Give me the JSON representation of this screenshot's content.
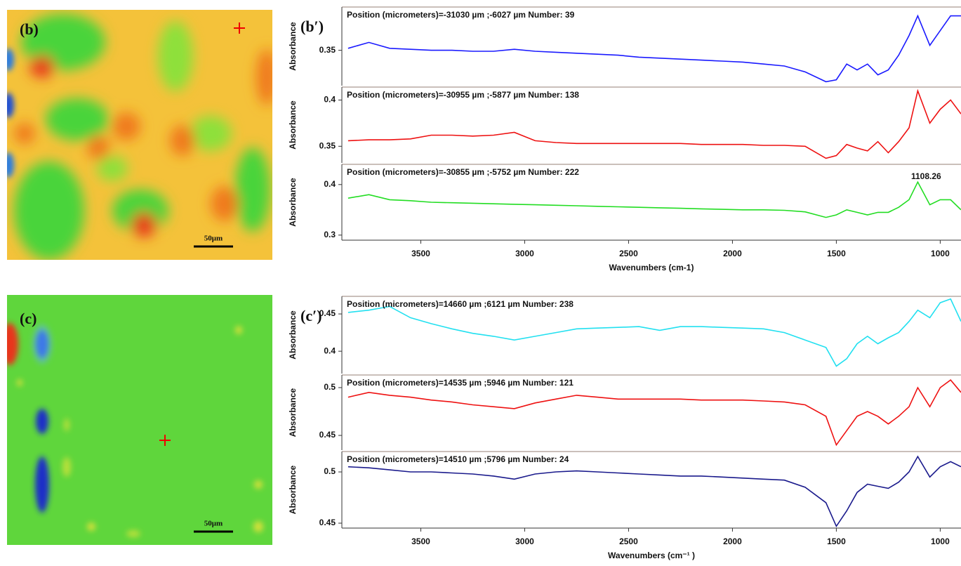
{
  "images": [
    {
      "label": "(b)",
      "scale_bar": "50μm"
    },
    {
      "label": "(c)",
      "scale_bar": "50μm"
    }
  ],
  "chart_data": [
    {
      "type": "line",
      "label": "(b′)",
      "x_label": "Wavenumbers (cm-1)",
      "xlim": [
        3880,
        900
      ],
      "xticks": [
        3500,
        3000,
        2500,
        2000,
        1500,
        1000
      ],
      "x": [
        3850,
        3750,
        3650,
        3550,
        3450,
        3350,
        3250,
        3150,
        3050,
        2950,
        2850,
        2750,
        2650,
        2550,
        2450,
        2350,
        2250,
        2150,
        2050,
        1950,
        1850,
        1750,
        1650,
        1550,
        1500,
        1450,
        1400,
        1350,
        1300,
        1250,
        1200,
        1150,
        1108,
        1050,
        1000,
        950,
        900
      ],
      "panels": [
        {
          "title": "Position (micrometers)=-31030 µm ;-6027 µm  Number: 39",
          "y_label": "Absorbance",
          "color": "#1a1aff",
          "ylim": [
            0.314,
            0.394
          ],
          "yticks": [
            0.35
          ],
          "values": [
            0.352,
            0.358,
            0.352,
            0.351,
            0.35,
            0.35,
            0.349,
            0.349,
            0.351,
            0.349,
            0.348,
            0.347,
            0.346,
            0.345,
            0.343,
            0.342,
            0.341,
            0.34,
            0.339,
            0.338,
            0.336,
            0.334,
            0.328,
            0.318,
            0.32,
            0.336,
            0.33,
            0.336,
            0.325,
            0.33,
            0.345,
            0.365,
            0.385,
            0.355,
            0.37,
            0.385,
            0.385
          ]
        },
        {
          "title": "Position (micrometers)=-30955 µm ;-5877 µm  Number: 138",
          "y_label": "Absorbance",
          "color": "#ee1111",
          "ylim": [
            0.332,
            0.414
          ],
          "yticks": [
            0.35,
            0.4
          ],
          "values": [
            0.356,
            0.357,
            0.357,
            0.358,
            0.362,
            0.362,
            0.361,
            0.362,
            0.365,
            0.356,
            0.354,
            0.353,
            0.353,
            0.353,
            0.353,
            0.353,
            0.353,
            0.352,
            0.352,
            0.352,
            0.351,
            0.351,
            0.35,
            0.337,
            0.34,
            0.352,
            0.348,
            0.345,
            0.355,
            0.343,
            0.355,
            0.37,
            0.41,
            0.375,
            0.39,
            0.4,
            0.385
          ]
        },
        {
          "title": "Position (micrometers)=-30855 µm ;-5752 µm  Number: 222",
          "y_label": "Absorbance",
          "color": "#22dd22",
          "ylim": [
            0.29,
            0.44
          ],
          "yticks": [
            0.3,
            0.4
          ],
          "annotation": 1108.26,
          "values": [
            0.373,
            0.38,
            0.37,
            0.368,
            0.365,
            0.364,
            0.363,
            0.362,
            0.361,
            0.36,
            0.359,
            0.358,
            0.357,
            0.356,
            0.355,
            0.354,
            0.353,
            0.352,
            0.351,
            0.35,
            0.35,
            0.349,
            0.346,
            0.335,
            0.34,
            0.35,
            0.345,
            0.34,
            0.345,
            0.345,
            0.355,
            0.37,
            0.405,
            0.36,
            0.37,
            0.37,
            0.35
          ]
        }
      ]
    },
    {
      "type": "line",
      "label": "(c′)",
      "x_label": "Wavenumbers (cm⁻¹ )",
      "xlim": [
        3880,
        900
      ],
      "xticks": [
        3500,
        3000,
        2500,
        2000,
        1500,
        1000
      ],
      "x": [
        3850,
        3750,
        3650,
        3550,
        3450,
        3350,
        3250,
        3150,
        3050,
        2950,
        2850,
        2750,
        2650,
        2550,
        2450,
        2350,
        2250,
        2150,
        2050,
        1950,
        1850,
        1750,
        1650,
        1550,
        1500,
        1450,
        1400,
        1350,
        1300,
        1250,
        1200,
        1150,
        1108,
        1050,
        1000,
        950,
        900
      ],
      "panels": [
        {
          "title": "Position (micrometers)=14660 µm ;6121 µm  Number: 238",
          "y_label": "Absorbance",
          "color": "#22e0f0",
          "ylim": [
            0.37,
            0.4736
          ],
          "yticks": [
            0.4,
            0.45
          ],
          "values": [
            0.452,
            0.455,
            0.46,
            0.445,
            0.437,
            0.43,
            0.424,
            0.42,
            0.415,
            0.42,
            0.425,
            0.43,
            0.431,
            0.432,
            0.433,
            0.428,
            0.433,
            0.433,
            0.432,
            0.431,
            0.43,
            0.425,
            0.415,
            0.405,
            0.38,
            0.39,
            0.41,
            0.42,
            0.41,
            0.418,
            0.425,
            0.44,
            0.455,
            0.445,
            0.465,
            0.47,
            0.44
          ]
        },
        {
          "title": "Position (micrometers)=14535 µm ;5946 µm  Number: 121",
          "y_label": "Absorbance",
          "color": "#ee1111",
          "ylim": [
            0.4346,
            0.5132
          ],
          "yticks": [
            0.45,
            0.5
          ],
          "values": [
            0.49,
            0.495,
            0.492,
            0.49,
            0.487,
            0.485,
            0.482,
            0.48,
            0.478,
            0.484,
            0.488,
            0.492,
            0.49,
            0.488,
            0.488,
            0.488,
            0.488,
            0.487,
            0.487,
            0.487,
            0.486,
            0.485,
            0.482,
            0.47,
            0.44,
            0.455,
            0.47,
            0.475,
            0.47,
            0.462,
            0.47,
            0.48,
            0.5,
            0.48,
            0.5,
            0.508,
            0.495
          ]
        },
        {
          "title": "Position (micrometers)=14510 µm ;5796 µm  Number: 24",
          "y_label": "Absorbance",
          "color": "#1a1a8c",
          "ylim": [
            0.4452,
            0.5199
          ],
          "yticks": [
            0.45,
            0.5
          ],
          "values": [
            0.505,
            0.504,
            0.502,
            0.5,
            0.5,
            0.499,
            0.498,
            0.496,
            0.493,
            0.498,
            0.5,
            0.501,
            0.5,
            0.499,
            0.498,
            0.497,
            0.496,
            0.496,
            0.495,
            0.494,
            0.493,
            0.492,
            0.485,
            0.47,
            0.447,
            0.462,
            0.48,
            0.488,
            0.486,
            0.484,
            0.49,
            0.5,
            0.515,
            0.495,
            0.505,
            0.51,
            0.505
          ]
        }
      ]
    }
  ]
}
